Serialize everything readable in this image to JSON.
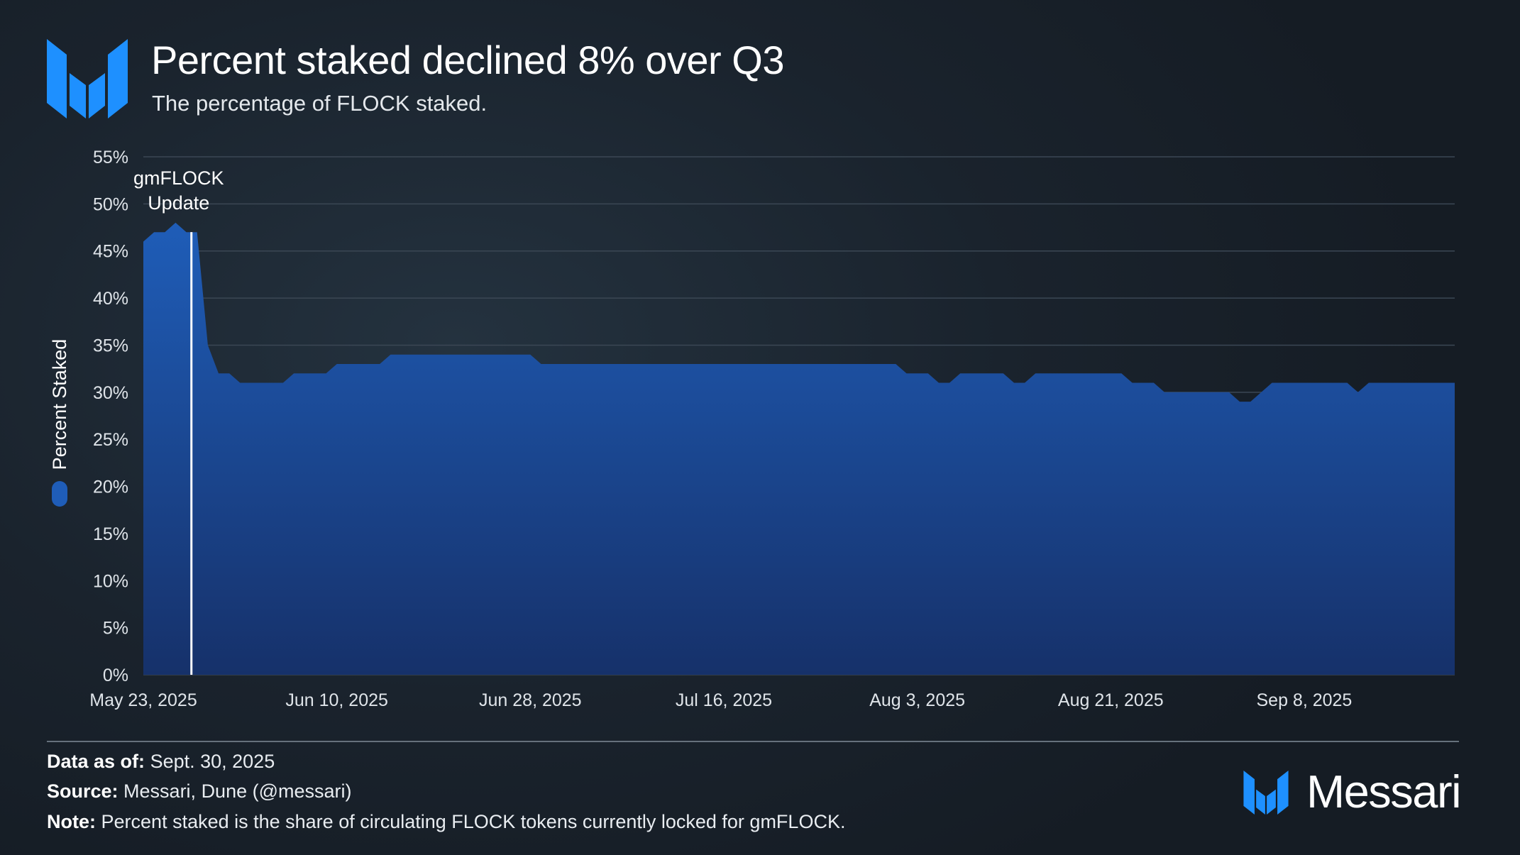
{
  "header": {
    "logo_icon": "messari-logo-icon",
    "title": "Percent staked declined 8% over Q3",
    "subtitle": "The percentage of FLOCK staked."
  },
  "chart_data": {
    "type": "area",
    "title": "Percent staked declined 8% over Q3",
    "subtitle": "The percentage of FLOCK staked.",
    "xlabel": "",
    "ylabel": "Percent Staked",
    "legend_placement": "left, vertical beside y-axis",
    "grid": true,
    "color": "#1f5db8",
    "x_start": "2025-05-23",
    "x_end": "2025-09-22",
    "ylim": [
      0,
      55
    ],
    "y_ticks": [
      "0%",
      "5%",
      "10%",
      "15%",
      "20%",
      "25%",
      "30%",
      "35%",
      "40%",
      "45%",
      "50%",
      "55%"
    ],
    "x_tick_dates": [
      "2025-05-23",
      "2025-06-10",
      "2025-06-28",
      "2025-07-16",
      "2025-08-03",
      "2025-08-21",
      "2025-09-08"
    ],
    "x_ticks": [
      "May 23, 2025",
      "Jun 10, 2025",
      "Jun 28, 2025",
      "Jul 16, 2025",
      "Aug 3, 2025",
      "Aug 21, 2025",
      "Sep 8, 2025"
    ],
    "series": [
      {
        "name": "Percent Staked",
        "points": [
          [
            "2025-05-23",
            46
          ],
          [
            "2025-05-24",
            47
          ],
          [
            "2025-05-25",
            47
          ],
          [
            "2025-05-26",
            48
          ],
          [
            "2025-05-27",
            47
          ],
          [
            "2025-05-28",
            47
          ],
          [
            "2025-05-29",
            35
          ],
          [
            "2025-05-30",
            32
          ],
          [
            "2025-05-31",
            32
          ],
          [
            "2025-06-01",
            31
          ],
          [
            "2025-06-05",
            31
          ],
          [
            "2025-06-06",
            32
          ],
          [
            "2025-06-09",
            32
          ],
          [
            "2025-06-10",
            33
          ],
          [
            "2025-06-14",
            33
          ],
          [
            "2025-06-15",
            34
          ],
          [
            "2025-06-28",
            34
          ],
          [
            "2025-06-29",
            33
          ],
          [
            "2025-08-01",
            33
          ],
          [
            "2025-08-02",
            32
          ],
          [
            "2025-08-04",
            32
          ],
          [
            "2025-08-05",
            31
          ],
          [
            "2025-08-06",
            31
          ],
          [
            "2025-08-07",
            32
          ],
          [
            "2025-08-11",
            32
          ],
          [
            "2025-08-12",
            31
          ],
          [
            "2025-08-13",
            31
          ],
          [
            "2025-08-14",
            32
          ],
          [
            "2025-08-22",
            32
          ],
          [
            "2025-08-23",
            31
          ],
          [
            "2025-08-25",
            31
          ],
          [
            "2025-08-26",
            30
          ],
          [
            "2025-09-01",
            30
          ],
          [
            "2025-09-02",
            29
          ],
          [
            "2025-09-03",
            29
          ],
          [
            "2025-09-05",
            31
          ],
          [
            "2025-09-12",
            31
          ],
          [
            "2025-09-13",
            30
          ],
          [
            "2025-09-14",
            31
          ],
          [
            "2025-09-22",
            31
          ]
        ]
      }
    ],
    "annotations": [
      {
        "date": "2025-05-28",
        "label_line1": "gmFLOCK",
        "label_line2": "Update"
      }
    ]
  },
  "footer": {
    "data_as_of_label": "Data as of:",
    "data_as_of_value": "Sept. 30, 2025",
    "source_label": "Source:",
    "source_value": "Messari, Dune (@messari)",
    "note_label": "Note:",
    "note_value": "Percent staked is the share of circulating FLOCK tokens currently locked for gmFLOCK.",
    "brand_icon": "messari-logo-icon",
    "brand_name": "Messari"
  }
}
